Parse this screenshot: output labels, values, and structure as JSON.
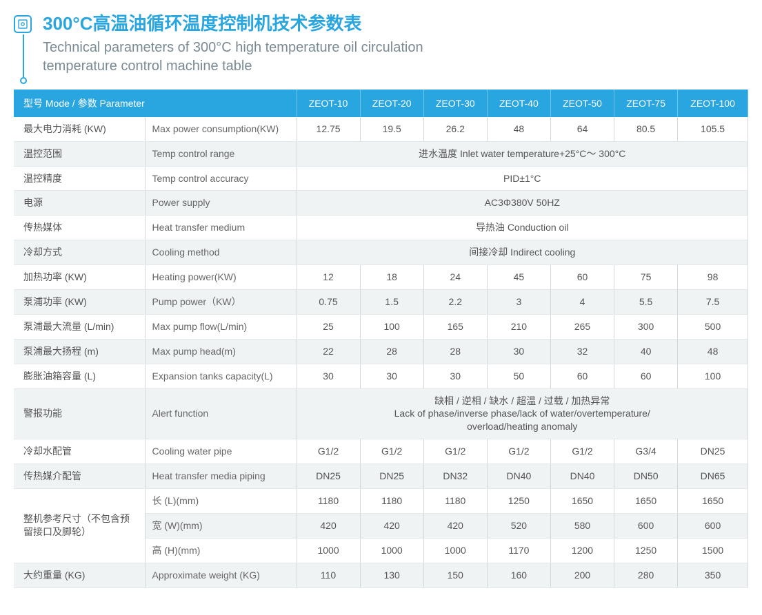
{
  "colors": {
    "accent": "#29a5df",
    "text": "#555555",
    "muted": "#7a8a94",
    "row_alt_bg": "#f0f3f4",
    "border": "#d0d8dc"
  },
  "header": {
    "icon_glyph": "⎙",
    "title_cn": "300°C高温油循环温度控制机技术参数表",
    "title_en": "Technical parameters of 300°C high temperature oil circulation temperature control machine table"
  },
  "table": {
    "head_label": "型号 Mode / 参数 Parameter",
    "models": [
      "ZEOT-10",
      "ZEOT-20",
      "ZEOT-30",
      "ZEOT-40",
      "ZEOT-50",
      "ZEOT-75",
      "ZEOT-100"
    ],
    "rows": [
      {
        "alt": false,
        "cn": "最大电力消耗 (KW)",
        "en": "Max power consumption(KW)",
        "values": [
          "12.75",
          "19.5",
          "26.2",
          "48",
          "64",
          "80.5",
          "105.5"
        ]
      },
      {
        "alt": true,
        "cn": "温控范围",
        "en": "Temp control range",
        "span": "进水温度 Inlet water temperature+25°C～ 300°C"
      },
      {
        "alt": false,
        "cn": "温控精度",
        "en": "Temp control accuracy",
        "span": "PID±1°C"
      },
      {
        "alt": true,
        "cn": "电源",
        "en": "Power supply",
        "span": "AC3Φ380V 50HZ"
      },
      {
        "alt": false,
        "cn": "传热媒体",
        "en": "Heat transfer medium",
        "span": "导热油 Conduction oil"
      },
      {
        "alt": true,
        "cn": "冷却方式",
        "en": "Cooling method",
        "span": "间接冷却 Indirect cooling"
      },
      {
        "alt": false,
        "cn": "加热功率 (KW)",
        "en": "Heating power(KW)",
        "values": [
          "12",
          "18",
          "24",
          "45",
          "60",
          "75",
          "98"
        ]
      },
      {
        "alt": true,
        "cn": "泵浦功率 (KW)",
        "en": "Pump power（KW）",
        "values": [
          "0.75",
          "1.5",
          "2.2",
          "3",
          "4",
          "5.5",
          "7.5"
        ]
      },
      {
        "alt": false,
        "cn": "泵浦最大流量 (L/min)",
        "en": "Max pump flow(L/min)",
        "values": [
          "25",
          "100",
          "165",
          "210",
          "265",
          "300",
          "500"
        ]
      },
      {
        "alt": true,
        "cn": "泵浦最大扬程 (m)",
        "en": "Max pump head(m)",
        "values": [
          "22",
          "28",
          "28",
          "30",
          "32",
          "40",
          "48"
        ]
      },
      {
        "alt": false,
        "cn": "膨胀油箱容量 (L)",
        "en": "Expansion tanks capacity(L)",
        "values": [
          "30",
          "30",
          "30",
          "50",
          "60",
          "60",
          "100"
        ]
      },
      {
        "alt": true,
        "cn": "警报功能",
        "en": "Alert function",
        "span": "缺相 / 逆相 / 缺水 / 超温 / 过载 / 加热异常\nLack of phase/inverse phase/lack of water/overtemperature/\noverload/heating anomaly"
      },
      {
        "alt": false,
        "cn": "冷却水配管",
        "en": "Cooling water pipe",
        "values": [
          "G1/2",
          "G1/2",
          "G1/2",
          "G1/2",
          "G1/2",
          "G3/4",
          "DN25"
        ]
      },
      {
        "alt": true,
        "cn": "传热媒介配管",
        "en": "Heat transfer media piping",
        "values": [
          "DN25",
          "DN25",
          "DN32",
          "DN40",
          "DN40",
          "DN50",
          "DN65"
        ]
      },
      {
        "alt": false,
        "cn_group": "整机参考尺寸（不包含预留接口及脚轮）",
        "en": "长 (L)(mm)",
        "values": [
          "1180",
          "1180",
          "1180",
          "1250",
          "1650",
          "1650",
          "1650"
        ],
        "group_start": true,
        "group_span": 3
      },
      {
        "alt": true,
        "en": "宽 (W)(mm)",
        "values": [
          "420",
          "420",
          "420",
          "520",
          "580",
          "600",
          "600"
        ],
        "in_group": true
      },
      {
        "alt": false,
        "en": "高 (H)(mm)",
        "values": [
          "1000",
          "1000",
          "1000",
          "1170",
          "1200",
          "1250",
          "1500"
        ],
        "in_group": true
      },
      {
        "alt": true,
        "cn": "大约重量 (KG)",
        "en": "Approximate weight (KG)",
        "values": [
          "110",
          "130",
          "150",
          "160",
          "200",
          "280",
          "350"
        ]
      }
    ]
  }
}
